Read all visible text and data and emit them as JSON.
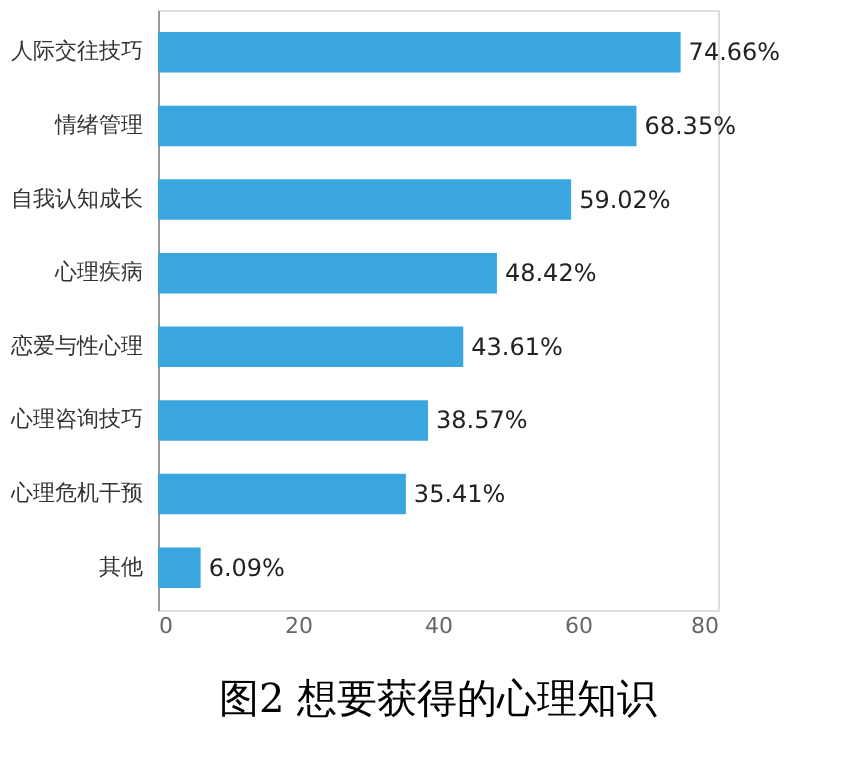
{
  "chart_data": {
    "type": "bar",
    "orientation": "horizontal",
    "title": "图2 想要获得的心理知识",
    "categories": [
      "人际交往技巧",
      "情绪管理",
      "自我认知成长",
      "心理疾病",
      "恋爱与性心理",
      "心理咨询技巧",
      "心理危机干预",
      "其他"
    ],
    "values": [
      74.66,
      68.35,
      59.02,
      48.42,
      43.61,
      38.57,
      35.41,
      6.09
    ],
    "value_labels": [
      "74.66%",
      "68.35%",
      "59.02%",
      "48.42%",
      "43.61%",
      "38.57%",
      "35.41%",
      "6.09%"
    ],
    "color": "#3aa6e0",
    "xlim": [
      0,
      80
    ],
    "xticks": [
      0,
      20,
      40,
      60,
      80
    ],
    "grid": false
  }
}
